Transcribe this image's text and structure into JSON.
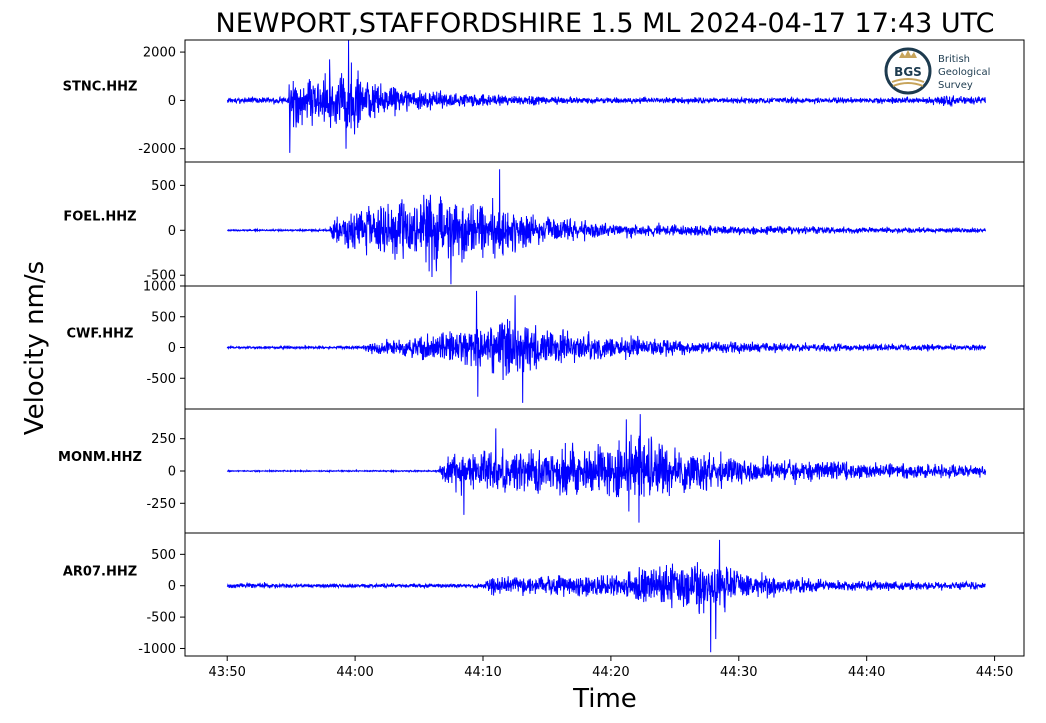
{
  "chart_data": {
    "type": "line",
    "title": "NEWPORT,STAFFORDSHIRE 1.5 ML   2024-04-17 17:43 UTC",
    "xlabel": "Time",
    "ylabel": "Velocity nm/s",
    "line_color": "#0000ff",
    "x_ticks": [
      "43:50",
      "44:00",
      "44:10",
      "44:20",
      "44:30",
      "44:40",
      "44:50"
    ],
    "x_tick_seconds": [
      0,
      10,
      20,
      30,
      40,
      50,
      60
    ],
    "x_range_seconds": [
      -3.3,
      62.3
    ],
    "data_range_seconds": [
      0,
      59.3
    ],
    "grid": false,
    "logo": {
      "abbr": "BGS",
      "lines": [
        "British",
        "Geological",
        "Survey"
      ]
    },
    "series": [
      {
        "name": "STNC.HHZ",
        "ylim": [
          -2550,
          2500
        ],
        "yticks": [
          2000,
          0,
          -2000
        ],
        "ytick_labels": [
          "2000",
          "0",
          "-2000"
        ],
        "noise": 180,
        "envelope": [
          [
            0,
            180
          ],
          [
            4.8,
            180
          ],
          [
            4.9,
            1500
          ],
          [
            7,
            1150
          ],
          [
            9,
            1700
          ],
          [
            9.5,
            2400
          ],
          [
            11,
            1200
          ],
          [
            14,
            650
          ],
          [
            18,
            420
          ],
          [
            25,
            220
          ],
          [
            33,
            170
          ],
          [
            43,
            170
          ],
          [
            52,
            170
          ],
          [
            55,
            180
          ],
          [
            55.3,
            450
          ],
          [
            56.5,
            300
          ],
          [
            59,
            190
          ],
          [
            59.3,
            500
          ]
        ],
        "peaks": [
          [
            9.5,
            2980
          ],
          [
            4.9,
            -2170
          ],
          [
            9.3,
            -2000
          ],
          [
            8,
            1700
          ]
        ]
      },
      {
        "name": "FOEL.HHZ",
        "ylim": [
          -620,
          760
        ],
        "yticks": [
          500,
          0,
          -500
        ],
        "ytick_labels": [
          "500",
          "0",
          "-500"
        ],
        "noise": 12,
        "envelope": [
          [
            0,
            12
          ],
          [
            8,
            14
          ],
          [
            8.1,
            220
          ],
          [
            10,
            350
          ],
          [
            13,
            480
          ],
          [
            16,
            530
          ],
          [
            19,
            460
          ],
          [
            22,
            320
          ],
          [
            26,
            180
          ],
          [
            30,
            110
          ],
          [
            40,
            70
          ],
          [
            50,
            45
          ],
          [
            59,
            35
          ],
          [
            59.3,
            30
          ]
        ],
        "peaks": [
          [
            21.3,
            680
          ],
          [
            17.5,
            -600
          ],
          [
            16,
            -520
          ]
        ]
      },
      {
        "name": "CWF.HHZ",
        "ylim": [
          -1000,
          1000
        ],
        "yticks": [
          1000,
          500,
          0,
          -500
        ],
        "ytick_labels": [
          "1000",
          "500",
          "0",
          "-500"
        ],
        "noise": 22,
        "envelope": [
          [
            0,
            22
          ],
          [
            10.5,
            30
          ],
          [
            11.2,
            140
          ],
          [
            14,
            220
          ],
          [
            18,
            420
          ],
          [
            20,
            560
          ],
          [
            22,
            600
          ],
          [
            24,
            480
          ],
          [
            28,
            300
          ],
          [
            34,
            180
          ],
          [
            42,
            110
          ],
          [
            50,
            80
          ],
          [
            59.3,
            60
          ]
        ],
        "peaks": [
          [
            19.5,
            920
          ],
          [
            22.5,
            850
          ],
          [
            19.6,
            -800
          ],
          [
            23.1,
            -900
          ]
        ]
      },
      {
        "name": "MONM.HHZ",
        "ylim": [
          -480,
          480
        ],
        "yticks": [
          250,
          0,
          -250
        ],
        "ytick_labels": [
          "250",
          "0",
          "-250"
        ],
        "noise": 6,
        "envelope": [
          [
            0,
            6
          ],
          [
            16.5,
            8
          ],
          [
            17,
            150
          ],
          [
            19,
            240
          ],
          [
            24,
            250
          ],
          [
            28,
            250
          ],
          [
            31,
            330
          ],
          [
            33,
            330
          ],
          [
            36,
            230
          ],
          [
            40,
            150
          ],
          [
            46,
            110
          ],
          [
            52,
            80
          ],
          [
            59.3,
            60
          ]
        ],
        "peaks": [
          [
            32.3,
            440
          ],
          [
            31.2,
            400
          ],
          [
            21,
            330
          ],
          [
            32.2,
            -400
          ],
          [
            18.5,
            -340
          ]
        ]
      },
      {
        "name": "AR07.HHZ",
        "ylim": [
          -1120,
          840
        ],
        "yticks": [
          500,
          0,
          -500,
          -1000
        ],
        "ytick_labels": [
          "500",
          "0",
          "-500",
          "-1000"
        ],
        "noise": 30,
        "envelope": [
          [
            0,
            40
          ],
          [
            2,
            70
          ],
          [
            5,
            40
          ],
          [
            20,
            45
          ],
          [
            20.5,
            190
          ],
          [
            25,
            220
          ],
          [
            30,
            280
          ],
          [
            33,
            350
          ],
          [
            36,
            550
          ],
          [
            38,
            600
          ],
          [
            40,
            320
          ],
          [
            44,
            170
          ],
          [
            50,
            110
          ],
          [
            59.3,
            80
          ]
        ],
        "peaks": [
          [
            38.5,
            730
          ],
          [
            37.8,
            -1060
          ],
          [
            38.2,
            -850
          ]
        ]
      }
    ]
  }
}
